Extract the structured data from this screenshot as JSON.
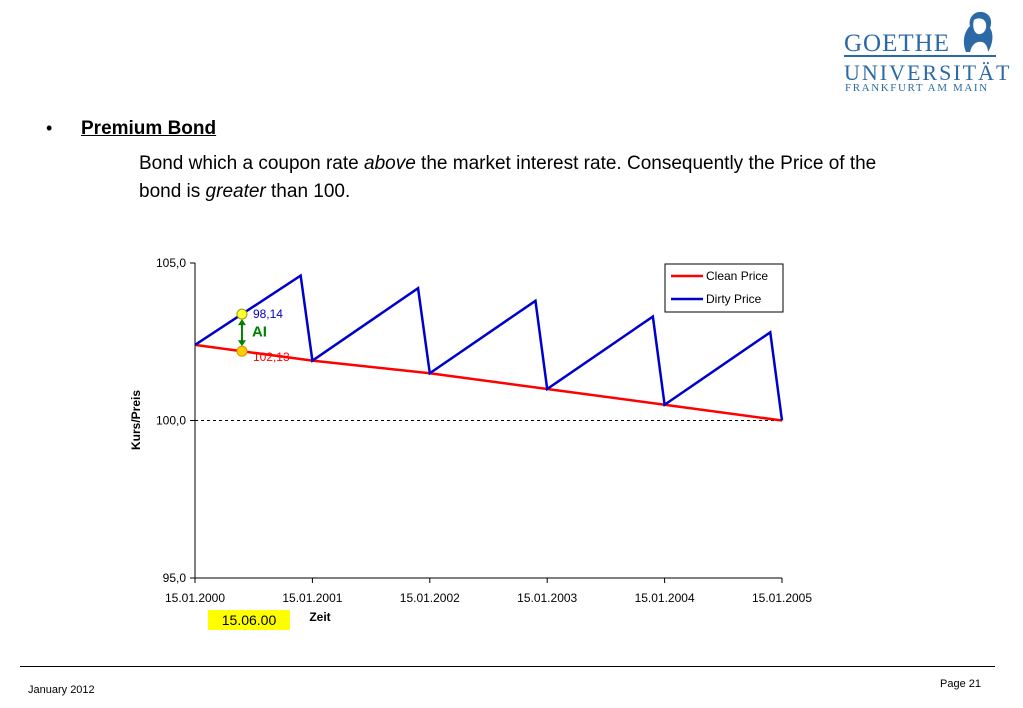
{
  "logo": {
    "line1": "GOETHE",
    "line2": "UNIVERSITÄT",
    "line3": "FRANKFURT AM MAIN",
    "color": "#2b6aa6"
  },
  "slide": {
    "bullet": "•",
    "heading": "Premium Bond",
    "para_p1": "Bond which a coupon rate ",
    "para_em1": "above",
    "para_p2": " the market interest rate. Consequently the Price of the bond is ",
    "para_em2": "greater",
    "para_p3": " than 100."
  },
  "chart_data": {
    "type": "line",
    "x_ticks": [
      "15.01.2000",
      "15.01.2001",
      "15.01.2002",
      "15.01.2003",
      "15.01.2004",
      "15.01.2005"
    ],
    "y_ticks": [
      "95,0",
      "100,0",
      "105,0"
    ],
    "ylim": [
      95,
      105
    ],
    "xlabel": "Zeit",
    "ylabel": "Kurs/Preis",
    "legend_position": "top-right",
    "reference_line": 100.0,
    "series": [
      {
        "name": "Clean Price",
        "color": "#ff0000",
        "points": [
          [
            0,
            102.4
          ],
          [
            1,
            101.9
          ],
          [
            2,
            101.5
          ],
          [
            3,
            101.0
          ],
          [
            4,
            100.5
          ],
          [
            5,
            100.0
          ]
        ]
      },
      {
        "name": "Dirty Price",
        "color": "#0000cc",
        "points": [
          [
            0,
            102.4
          ],
          [
            0.9,
            104.6
          ],
          [
            1,
            101.9
          ],
          [
            1.9,
            104.2
          ],
          [
            2,
            101.5
          ],
          [
            2.9,
            103.8
          ],
          [
            3,
            101.0
          ],
          [
            3.9,
            103.3
          ],
          [
            4,
            100.5
          ],
          [
            4.9,
            102.8
          ],
          [
            5,
            100.0
          ]
        ]
      }
    ],
    "annotations": {
      "dirty_label": "98,14",
      "clean_label": "102,13",
      "ai_label": "AI",
      "date_label": "15.06.00",
      "marker_x": 0.4
    }
  },
  "footer": {
    "date": "January 2012",
    "page": "Page 21"
  }
}
